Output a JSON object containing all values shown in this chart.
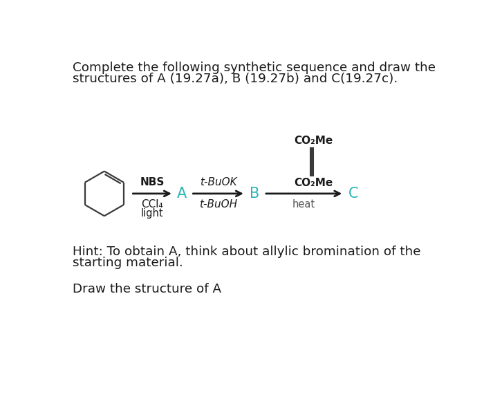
{
  "title_line1": "Complete the following synthetic sequence and draw the",
  "title_line2": "structures of A (19.27a), B (19.27b) and C(19.27c).",
  "hint_line1": "Hint: To obtain A, think about allylic bromination of the",
  "hint_line2": "starting material.",
  "draw_text": "Draw the structure of A",
  "label_A": "A",
  "label_B": "B",
  "label_C": "C",
  "reagent1_line1": "NBS",
  "reagent1_line2": "CCl₄",
  "reagent1_line3": "light",
  "reagent2_line1": "t-BuOK",
  "reagent2_line2": "t-BuOH",
  "reagent3_line1": "heat",
  "dienophile_top": "CO₂Me",
  "dienophile_bottom": "CO₂Me",
  "bg_color": "#ffffff",
  "text_color": "#1a1a1a",
  "label_color": "#2ab5b5",
  "arrow_color": "#1a1a1a",
  "structure_color": "#3a3a3a"
}
